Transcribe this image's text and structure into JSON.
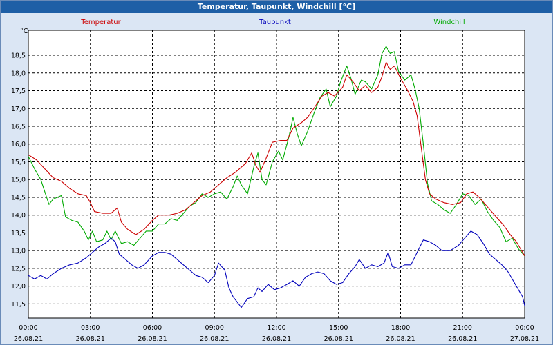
{
  "window": {
    "title": "Temperatur, Taupunkt, Windchill [°C]"
  },
  "colors": {
    "temperatur": "#cc0000",
    "taupunkt": "#0000bb",
    "windchill": "#00aa00",
    "background": "#dbe6f4",
    "titlebar": "#1e5fa6"
  },
  "chart_data": {
    "type": "line",
    "title": "Temperatur, Taupunkt, Windchill [°C]",
    "ylabel": "°C",
    "xlabel": "",
    "ylim": [
      11.1,
      19.2
    ],
    "xlim": [
      0,
      24
    ],
    "grid": true,
    "legend": [
      "Temperatur",
      "Taupunkt",
      "Windchill"
    ],
    "ytick_labels": [
      "11,5",
      "12,0",
      "12,5",
      "13,0",
      "13,5",
      "14,0",
      "14,5",
      "15,0",
      "15,5",
      "16,0",
      "16,5",
      "17,0",
      "17,5",
      "18,0",
      "18,5"
    ],
    "yticks": [
      11.5,
      12.0,
      12.5,
      13.0,
      13.5,
      14.0,
      14.5,
      15.0,
      15.5,
      16.0,
      16.5,
      17.0,
      17.5,
      18.0,
      18.5
    ],
    "xticks": [
      0,
      3,
      6,
      9,
      12,
      15,
      18,
      21,
      24
    ],
    "xtick_times": [
      "00:00",
      "03:00",
      "06:00",
      "09:00",
      "12:00",
      "15:00",
      "18:00",
      "21:00",
      "00:00"
    ],
    "xtick_dates": [
      "26.08.21",
      "26.08.21",
      "26.08.21",
      "26.08.21",
      "26.08.21",
      "26.08.21",
      "26.08.21",
      "26.08.21",
      "27.08.21"
    ],
    "series": [
      {
        "name": "Temperatur",
        "color": "#cc0000",
        "points": [
          [
            0,
            15.7
          ],
          [
            0.4,
            15.55
          ],
          [
            0.8,
            15.3
          ],
          [
            1.2,
            15.05
          ],
          [
            1.6,
            14.95
          ],
          [
            2,
            14.75
          ],
          [
            2.4,
            14.6
          ],
          [
            2.8,
            14.55
          ],
          [
            3,
            14.35
          ],
          [
            3.2,
            14.1
          ],
          [
            3.6,
            14.05
          ],
          [
            4,
            14.05
          ],
          [
            4.3,
            14.2
          ],
          [
            4.5,
            13.8
          ],
          [
            4.8,
            13.6
          ],
          [
            5.2,
            13.45
          ],
          [
            5.6,
            13.6
          ],
          [
            6,
            13.85
          ],
          [
            6.3,
            14.0
          ],
          [
            6.8,
            14.0
          ],
          [
            7.2,
            14.05
          ],
          [
            7.6,
            14.15
          ],
          [
            8,
            14.35
          ],
          [
            8.4,
            14.55
          ],
          [
            8.8,
            14.65
          ],
          [
            9.2,
            14.85
          ],
          [
            9.6,
            15.05
          ],
          [
            10,
            15.2
          ],
          [
            10.3,
            15.35
          ],
          [
            10.5,
            15.45
          ],
          [
            10.8,
            15.75
          ],
          [
            11,
            15.4
          ],
          [
            11.2,
            15.2
          ],
          [
            11.5,
            15.6
          ],
          [
            11.8,
            16.05
          ],
          [
            12.2,
            16.1
          ],
          [
            12.5,
            16.1
          ],
          [
            12.8,
            16.45
          ],
          [
            13.2,
            16.6
          ],
          [
            13.5,
            16.75
          ],
          [
            13.8,
            17.0
          ],
          [
            14.2,
            17.35
          ],
          [
            14.5,
            17.45
          ],
          [
            14.8,
            17.35
          ],
          [
            15.2,
            17.6
          ],
          [
            15.4,
            17.95
          ],
          [
            15.7,
            17.75
          ],
          [
            16,
            17.5
          ],
          [
            16.3,
            17.65
          ],
          [
            16.6,
            17.45
          ],
          [
            16.9,
            17.6
          ],
          [
            17.1,
            17.9
          ],
          [
            17.3,
            18.3
          ],
          [
            17.5,
            18.1
          ],
          [
            17.7,
            18.2
          ],
          [
            18,
            17.85
          ],
          [
            18.3,
            17.55
          ],
          [
            18.6,
            17.2
          ],
          [
            18.8,
            16.8
          ],
          [
            19,
            15.9
          ],
          [
            19.2,
            15.0
          ],
          [
            19.4,
            14.6
          ],
          [
            19.7,
            14.45
          ],
          [
            20.1,
            14.35
          ],
          [
            20.5,
            14.3
          ],
          [
            20.9,
            14.35
          ],
          [
            21.2,
            14.6
          ],
          [
            21.5,
            14.65
          ],
          [
            21.8,
            14.5
          ],
          [
            22.1,
            14.3
          ],
          [
            22.4,
            14.1
          ],
          [
            22.7,
            13.9
          ],
          [
            23,
            13.7
          ],
          [
            23.3,
            13.45
          ],
          [
            23.6,
            13.25
          ],
          [
            23.8,
            13.05
          ],
          [
            24,
            12.85
          ]
        ]
      },
      {
        "name": "Taupunkt",
        "color": "#0000bb",
        "points": [
          [
            0,
            12.3
          ],
          [
            0.3,
            12.2
          ],
          [
            0.6,
            12.3
          ],
          [
            0.9,
            12.2
          ],
          [
            1.2,
            12.35
          ],
          [
            1.6,
            12.5
          ],
          [
            2,
            12.6
          ],
          [
            2.4,
            12.65
          ],
          [
            2.8,
            12.8
          ],
          [
            3.1,
            12.95
          ],
          [
            3.4,
            13.1
          ],
          [
            3.7,
            13.2
          ],
          [
            4,
            13.35
          ],
          [
            4.2,
            13.25
          ],
          [
            4.4,
            12.9
          ],
          [
            4.7,
            12.75
          ],
          [
            5,
            12.6
          ],
          [
            5.3,
            12.5
          ],
          [
            5.6,
            12.6
          ],
          [
            6,
            12.85
          ],
          [
            6.3,
            12.95
          ],
          [
            6.6,
            12.95
          ],
          [
            6.9,
            12.9
          ],
          [
            7.2,
            12.75
          ],
          [
            7.5,
            12.6
          ],
          [
            7.8,
            12.45
          ],
          [
            8.1,
            12.3
          ],
          [
            8.4,
            12.25
          ],
          [
            8.7,
            12.1
          ],
          [
            9,
            12.3
          ],
          [
            9.2,
            12.65
          ],
          [
            9.5,
            12.45
          ],
          [
            9.7,
            11.95
          ],
          [
            9.9,
            11.7
          ],
          [
            10.1,
            11.55
          ],
          [
            10.3,
            11.4
          ],
          [
            10.6,
            11.65
          ],
          [
            10.9,
            11.7
          ],
          [
            11.1,
            11.95
          ],
          [
            11.3,
            11.85
          ],
          [
            11.6,
            12.05
          ],
          [
            11.9,
            11.9
          ],
          [
            12.2,
            11.95
          ],
          [
            12.5,
            12.05
          ],
          [
            12.8,
            12.15
          ],
          [
            13.1,
            12.0
          ],
          [
            13.4,
            12.25
          ],
          [
            13.7,
            12.35
          ],
          [
            14,
            12.4
          ],
          [
            14.3,
            12.35
          ],
          [
            14.6,
            12.15
          ],
          [
            14.9,
            12.05
          ],
          [
            15.2,
            12.1
          ],
          [
            15.5,
            12.35
          ],
          [
            15.8,
            12.55
          ],
          [
            16,
            12.75
          ],
          [
            16.3,
            12.5
          ],
          [
            16.6,
            12.6
          ],
          [
            16.9,
            12.55
          ],
          [
            17.2,
            12.65
          ],
          [
            17.4,
            12.95
          ],
          [
            17.6,
            12.55
          ],
          [
            17.9,
            12.5
          ],
          [
            18.2,
            12.6
          ],
          [
            18.5,
            12.6
          ],
          [
            18.8,
            12.95
          ],
          [
            19.1,
            13.3
          ],
          [
            19.4,
            13.25
          ],
          [
            19.7,
            13.15
          ],
          [
            20,
            13.0
          ],
          [
            20.4,
            13.0
          ],
          [
            20.8,
            13.15
          ],
          [
            21.1,
            13.35
          ],
          [
            21.4,
            13.55
          ],
          [
            21.7,
            13.45
          ],
          [
            22,
            13.2
          ],
          [
            22.3,
            12.9
          ],
          [
            22.6,
            12.75
          ],
          [
            22.9,
            12.6
          ],
          [
            23.2,
            12.4
          ],
          [
            23.5,
            12.1
          ],
          [
            23.7,
            11.9
          ],
          [
            23.9,
            11.7
          ],
          [
            24,
            11.45
          ]
        ]
      },
      {
        "name": "Windchill",
        "color": "#00aa00",
        "points": [
          [
            0,
            15.65
          ],
          [
            0.3,
            15.3
          ],
          [
            0.6,
            15.0
          ],
          [
            0.8,
            14.65
          ],
          [
            1.0,
            14.3
          ],
          [
            1.2,
            14.45
          ],
          [
            1.6,
            14.55
          ],
          [
            1.8,
            13.95
          ],
          [
            2.1,
            13.85
          ],
          [
            2.4,
            13.8
          ],
          [
            2.7,
            13.55
          ],
          [
            2.9,
            13.3
          ],
          [
            3.1,
            13.55
          ],
          [
            3.3,
            13.25
          ],
          [
            3.6,
            13.3
          ],
          [
            3.8,
            13.55
          ],
          [
            4,
            13.3
          ],
          [
            4.2,
            13.55
          ],
          [
            4.5,
            13.2
          ],
          [
            4.8,
            13.25
          ],
          [
            5.1,
            13.15
          ],
          [
            5.4,
            13.35
          ],
          [
            5.7,
            13.55
          ],
          [
            6,
            13.55
          ],
          [
            6.3,
            13.75
          ],
          [
            6.6,
            13.75
          ],
          [
            6.9,
            13.9
          ],
          [
            7.2,
            13.85
          ],
          [
            7.5,
            14.05
          ],
          [
            7.8,
            14.25
          ],
          [
            8.1,
            14.35
          ],
          [
            8.4,
            14.6
          ],
          [
            8.7,
            14.5
          ],
          [
            9,
            14.6
          ],
          [
            9.3,
            14.65
          ],
          [
            9.6,
            14.45
          ],
          [
            9.9,
            14.8
          ],
          [
            10.1,
            15.1
          ],
          [
            10.3,
            14.85
          ],
          [
            10.6,
            14.6
          ],
          [
            10.9,
            15.35
          ],
          [
            11.1,
            15.75
          ],
          [
            11.3,
            15.0
          ],
          [
            11.5,
            14.85
          ],
          [
            11.8,
            15.5
          ],
          [
            12.1,
            15.8
          ],
          [
            12.3,
            15.55
          ],
          [
            12.6,
            16.2
          ],
          [
            12.8,
            16.75
          ],
          [
            13,
            16.3
          ],
          [
            13.2,
            15.95
          ],
          [
            13.5,
            16.35
          ],
          [
            13.8,
            16.85
          ],
          [
            14.1,
            17.3
          ],
          [
            14.4,
            17.55
          ],
          [
            14.6,
            17.05
          ],
          [
            14.9,
            17.35
          ],
          [
            15.1,
            17.75
          ],
          [
            15.4,
            18.2
          ],
          [
            15.6,
            17.85
          ],
          [
            15.8,
            17.4
          ],
          [
            16.1,
            17.8
          ],
          [
            16.3,
            17.75
          ],
          [
            16.6,
            17.55
          ],
          [
            16.9,
            17.95
          ],
          [
            17.1,
            18.55
          ],
          [
            17.3,
            18.75
          ],
          [
            17.5,
            18.55
          ],
          [
            17.7,
            18.6
          ],
          [
            17.9,
            18.05
          ],
          [
            18.2,
            17.8
          ],
          [
            18.5,
            17.95
          ],
          [
            18.7,
            17.55
          ],
          [
            18.9,
            17.0
          ],
          [
            19.1,
            16.0
          ],
          [
            19.3,
            14.9
          ],
          [
            19.5,
            14.4
          ],
          [
            19.8,
            14.3
          ],
          [
            20.1,
            14.15
          ],
          [
            20.4,
            14.05
          ],
          [
            20.7,
            14.3
          ],
          [
            21,
            14.6
          ],
          [
            21.3,
            14.55
          ],
          [
            21.6,
            14.3
          ],
          [
            21.9,
            14.45
          ],
          [
            22.2,
            14.1
          ],
          [
            22.5,
            13.85
          ],
          [
            22.8,
            13.65
          ],
          [
            23.1,
            13.25
          ],
          [
            23.4,
            13.35
          ],
          [
            23.7,
            13.05
          ],
          [
            24,
            12.85
          ]
        ]
      }
    ]
  }
}
